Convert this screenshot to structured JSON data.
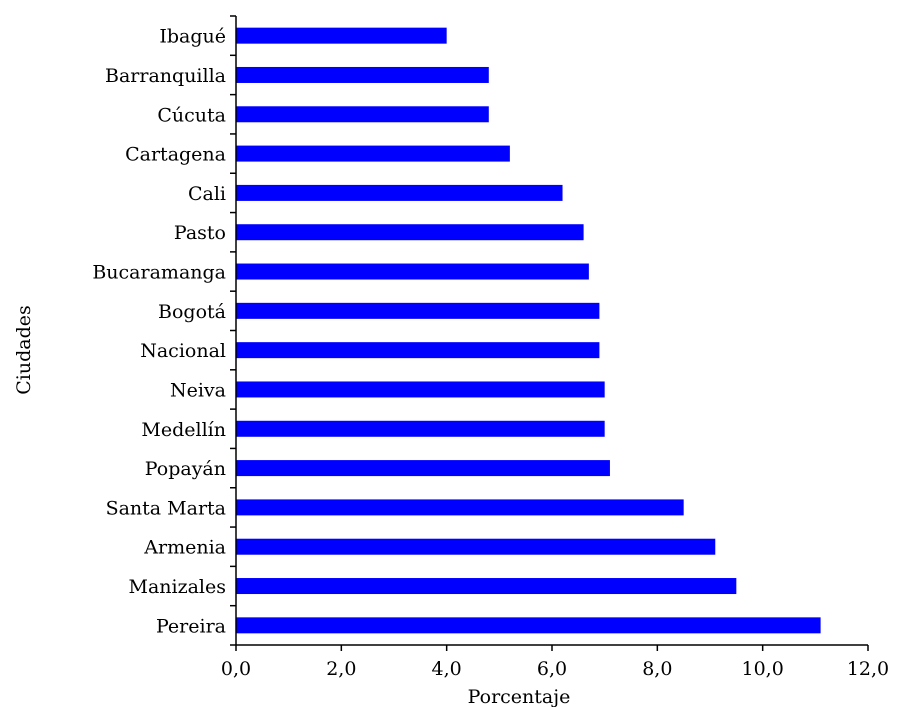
{
  "chart_data": {
    "type": "bar",
    "orientation": "horizontal",
    "categories": [
      "Ibagué",
      "Barranquilla",
      "Cúcuta",
      "Cartagena",
      "Cali",
      "Pasto",
      "Bucaramanga",
      "Bogotá",
      "Nacional",
      "Neiva",
      "Medellín",
      "Popayán",
      "Santa Marta",
      "Armenia",
      "Manizales",
      "Pereira"
    ],
    "values": [
      4.0,
      4.8,
      4.8,
      5.2,
      6.2,
      6.6,
      6.7,
      6.9,
      6.9,
      7.0,
      7.0,
      7.1,
      8.5,
      9.1,
      9.5,
      11.1
    ],
    "xlabel": "Porcentaje",
    "ylabel": "Ciudades",
    "xlim": [
      0,
      12
    ],
    "xticks": [
      "0,0",
      "2,0",
      "4,0",
      "6,0",
      "8,0",
      "10,0",
      "12,0"
    ],
    "bar_color": "#0000ff",
    "grid": false,
    "legend": "none"
  }
}
